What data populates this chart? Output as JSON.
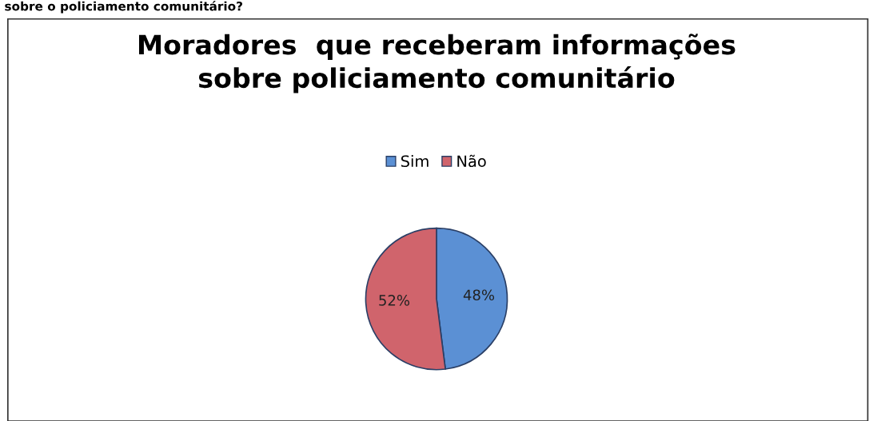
{
  "chart_data": {
    "type": "pie",
    "title": "Moradores  que receberam informações\nsobre policiamento comunitário",
    "categories": [
      "Sim",
      "Não"
    ],
    "values": [
      48,
      52
    ],
    "colors": [
      "#5b90d4",
      "#d0646c"
    ],
    "value_labels": [
      "48%",
      "52%"
    ],
    "legend": "top",
    "annotations": [
      "sobre o policiamento comunitário?"
    ]
  }
}
